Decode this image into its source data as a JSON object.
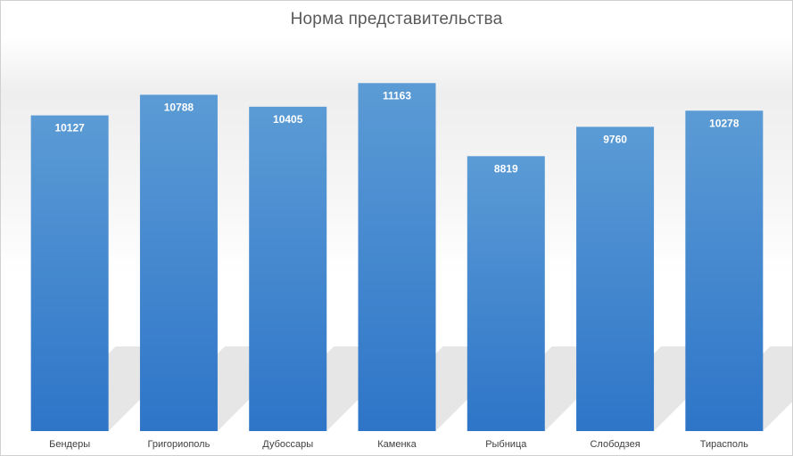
{
  "chart_data": {
    "type": "bar",
    "title": "Норма представительства",
    "categories": [
      "Бендеры",
      "Григориополь",
      "Дубоссары",
      "Каменка",
      "Рыбница",
      "Слободзея",
      "Тирасполь"
    ],
    "values": [
      10127,
      10788,
      10405,
      11163,
      8819,
      9760,
      10278
    ],
    "xlabel": "",
    "ylabel": "",
    "ylim": [
      0,
      11800
    ],
    "grid": false,
    "legend": "none",
    "data_labels": "inside-top",
    "colors": {
      "bar_top": "#5b9bd5",
      "bar_bottom": "#2e75c8",
      "data_label": "#ffffff",
      "title": "#595959",
      "category_label": "#404040"
    }
  }
}
